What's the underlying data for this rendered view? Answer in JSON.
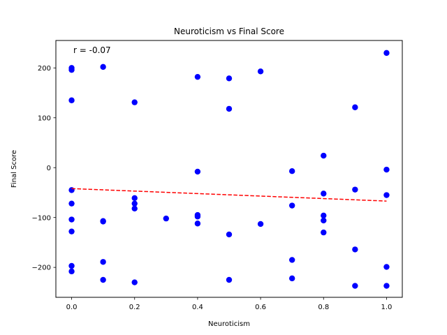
{
  "chart_data": {
    "type": "scatter",
    "title": "Neuroticism vs Final Score",
    "xlabel": "Neuroticism",
    "ylabel": "Final Score",
    "xlim": [
      -0.05,
      1.05
    ],
    "ylim": [
      -260,
      255
    ],
    "x_ticks": [
      0.0,
      0.2,
      0.4,
      0.6,
      0.8,
      1.0
    ],
    "x_tick_labels": [
      "0.0",
      "0.2",
      "0.4",
      "0.6",
      "0.8",
      "1.0"
    ],
    "y_ticks": [
      -200,
      -100,
      0,
      100,
      200
    ],
    "y_tick_labels": [
      "−200",
      "−100",
      "0",
      "100",
      "200"
    ],
    "grid": false,
    "annotation": "r = -0.07",
    "series": [
      {
        "color": "#0000ff",
        "points": [
          {
            "x": 0.0,
            "y": 200
          },
          {
            "x": 0.0,
            "y": 196
          },
          {
            "x": 0.0,
            "y": 135
          },
          {
            "x": 0.0,
            "y": -45
          },
          {
            "x": 0.0,
            "y": -72
          },
          {
            "x": 0.0,
            "y": -104
          },
          {
            "x": 0.0,
            "y": -128
          },
          {
            "x": 0.0,
            "y": -197
          },
          {
            "x": 0.0,
            "y": -208
          },
          {
            "x": 0.1,
            "y": 202
          },
          {
            "x": 0.1,
            "y": -107
          },
          {
            "x": 0.1,
            "y": -108
          },
          {
            "x": 0.1,
            "y": -189
          },
          {
            "x": 0.1,
            "y": -225
          },
          {
            "x": 0.2,
            "y": 131
          },
          {
            "x": 0.2,
            "y": -61
          },
          {
            "x": 0.2,
            "y": -72
          },
          {
            "x": 0.2,
            "y": -82
          },
          {
            "x": 0.2,
            "y": -230
          },
          {
            "x": 0.3,
            "y": -102
          },
          {
            "x": 0.4,
            "y": 182
          },
          {
            "x": 0.4,
            "y": -8
          },
          {
            "x": 0.4,
            "y": -95
          },
          {
            "x": 0.4,
            "y": -98
          },
          {
            "x": 0.4,
            "y": -112
          },
          {
            "x": 0.5,
            "y": 179
          },
          {
            "x": 0.5,
            "y": 118
          },
          {
            "x": 0.5,
            "y": -134
          },
          {
            "x": 0.5,
            "y": -225
          },
          {
            "x": 0.6,
            "y": 193
          },
          {
            "x": 0.6,
            "y": -113
          },
          {
            "x": 0.7,
            "y": -7
          },
          {
            "x": 0.7,
            "y": -76
          },
          {
            "x": 0.7,
            "y": -185
          },
          {
            "x": 0.7,
            "y": -222
          },
          {
            "x": 0.8,
            "y": 24
          },
          {
            "x": 0.8,
            "y": -52
          },
          {
            "x": 0.8,
            "y": -96
          },
          {
            "x": 0.8,
            "y": -106
          },
          {
            "x": 0.8,
            "y": -130
          },
          {
            "x": 0.9,
            "y": 121
          },
          {
            "x": 0.9,
            "y": -44
          },
          {
            "x": 0.9,
            "y": -164
          },
          {
            "x": 0.9,
            "y": -237
          },
          {
            "x": 1.0,
            "y": 230
          },
          {
            "x": 1.0,
            "y": -4
          },
          {
            "x": 1.0,
            "y": -55
          },
          {
            "x": 1.0,
            "y": -199
          },
          {
            "x": 1.0,
            "y": -237
          }
        ]
      }
    ],
    "trendline": {
      "style": "dashed",
      "color": "#ff0000",
      "from": {
        "x": 0.0,
        "y": -42
      },
      "to": {
        "x": 1.0,
        "y": -67
      }
    }
  }
}
